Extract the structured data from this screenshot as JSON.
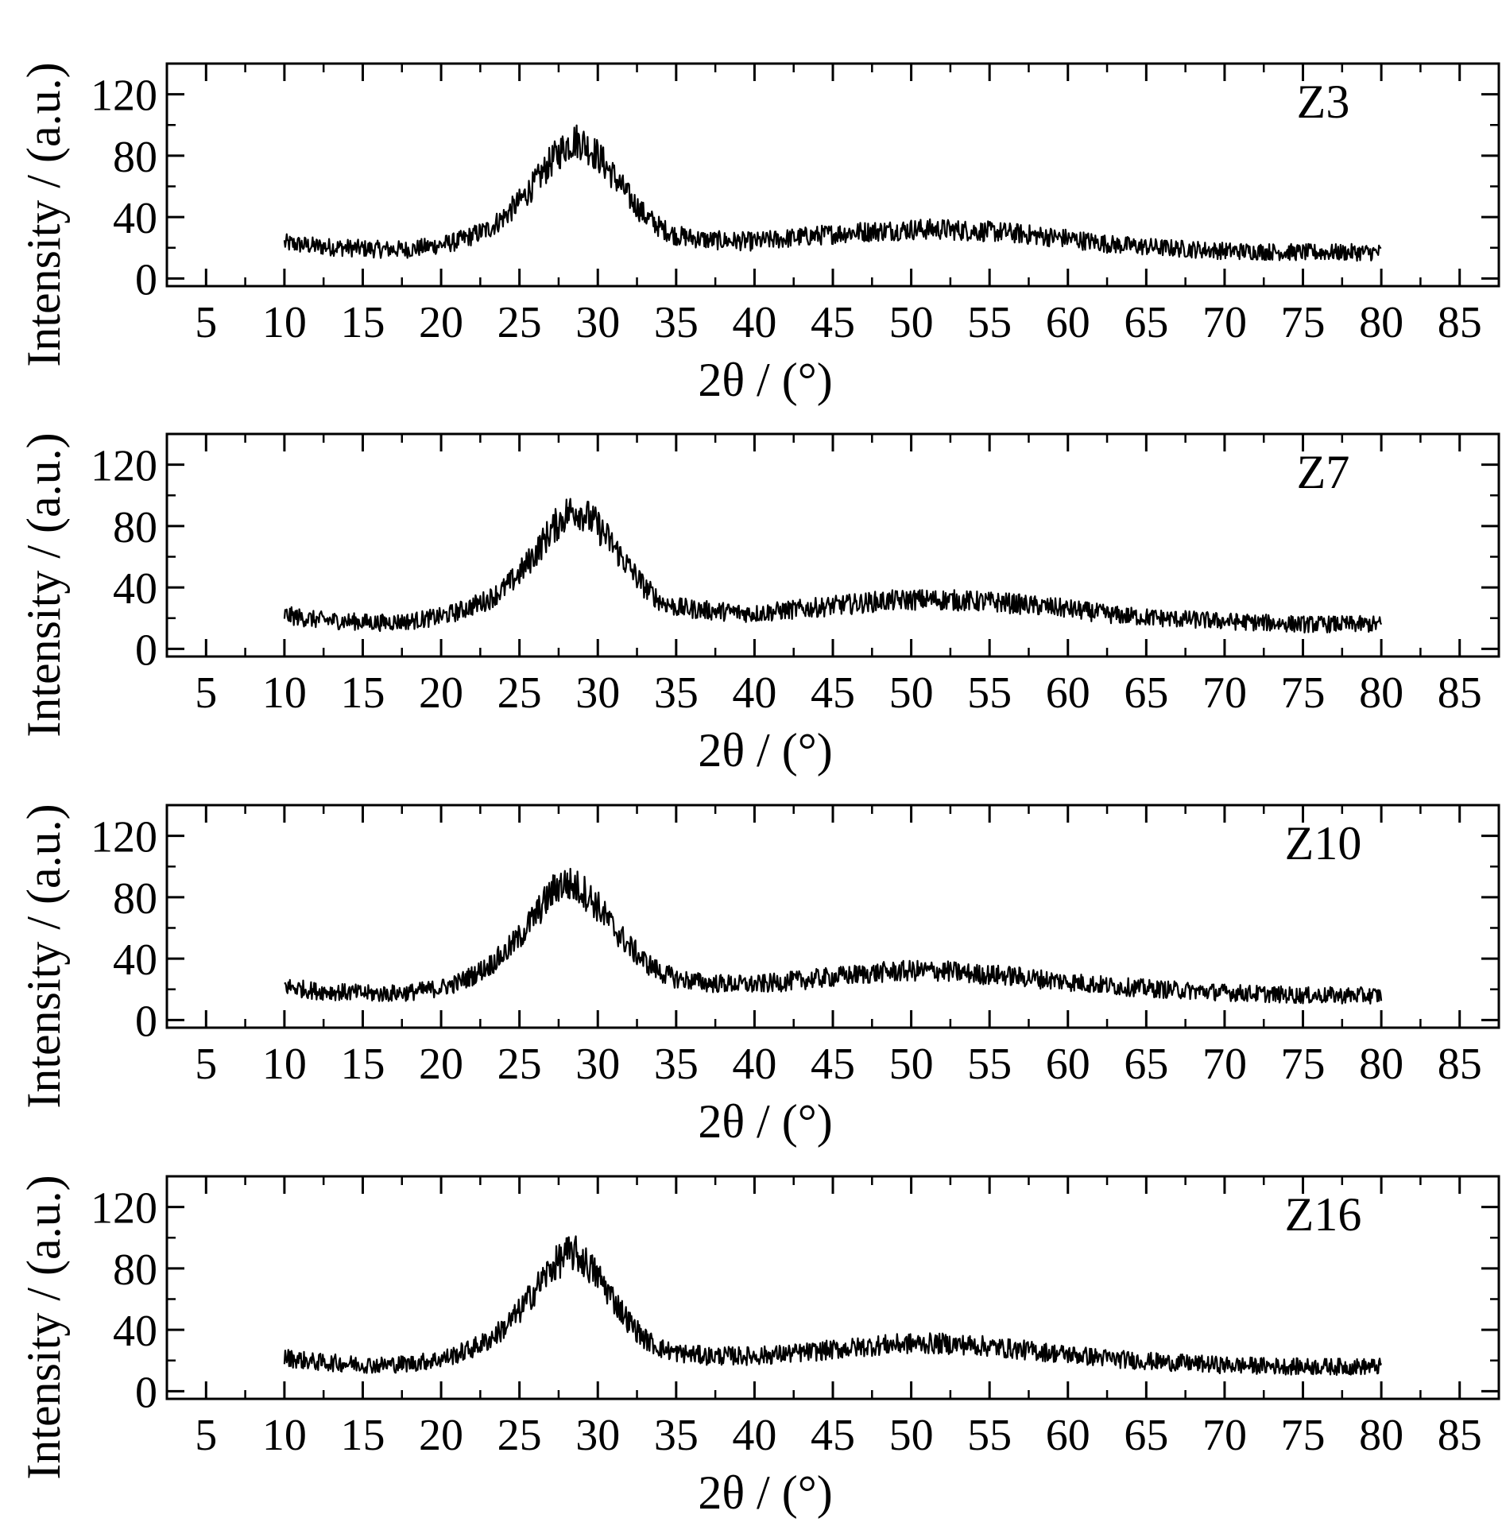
{
  "figure": {
    "background": "#ffffff",
    "line_color": "#000000"
  },
  "chart_data": [
    {
      "type": "line",
      "annotation": "Z3",
      "xlabel": "2θ / (°)",
      "ylabel": "Intensity / (a.u.)",
      "xlim": [
        2.5,
        87.5
      ],
      "ylim": [
        -5,
        140
      ],
      "xticks": [
        5,
        10,
        15,
        20,
        25,
        30,
        35,
        40,
        45,
        50,
        55,
        60,
        65,
        70,
        75,
        80,
        85
      ],
      "yticks": [
        0,
        40,
        80,
        120
      ],
      "x_range": [
        10,
        80
      ],
      "grid": false,
      "series": [
        {
          "x": [
            10,
            12,
            14,
            16,
            18,
            20,
            21,
            22,
            23,
            24,
            25,
            26,
            27,
            28,
            28.5,
            29,
            30,
            31,
            32,
            33,
            34,
            35,
            37,
            40,
            43,
            46,
            48,
            50,
            52,
            54,
            56,
            58,
            60,
            63,
            66,
            70,
            75,
            80
          ],
          "y": [
            23,
            21,
            20,
            19,
            19,
            22,
            24,
            28,
            32,
            40,
            50,
            62,
            76,
            87,
            90,
            89,
            80,
            67,
            53,
            41,
            33,
            28,
            25,
            24,
            27,
            30,
            31,
            32,
            32,
            31,
            30,
            28,
            26,
            22,
            20,
            18,
            17,
            17
          ]
        }
      ]
    },
    {
      "type": "line",
      "annotation": "Z7",
      "xlabel": "2θ / (°)",
      "ylabel": "Intensity / (a.u.)",
      "xlim": [
        2.5,
        87.5
      ],
      "ylim": [
        -5,
        140
      ],
      "xticks": [
        5,
        10,
        15,
        20,
        25,
        30,
        35,
        40,
        45,
        50,
        55,
        60,
        65,
        70,
        75,
        80,
        85
      ],
      "yticks": [
        0,
        40,
        80,
        120
      ],
      "x_range": [
        10,
        80
      ],
      "grid": false,
      "series": [
        {
          "x": [
            10,
            12,
            14,
            16,
            18,
            20,
            21,
            22,
            23,
            24,
            25,
            26,
            27,
            28,
            28.5,
            29,
            30,
            31,
            32,
            33,
            34,
            35,
            37,
            40,
            43,
            46,
            48,
            50,
            52,
            54,
            56,
            58,
            60,
            63,
            66,
            70,
            75,
            80
          ],
          "y": [
            22,
            19,
            18,
            17,
            18,
            21,
            24,
            28,
            32,
            39,
            49,
            62,
            77,
            88,
            91,
            89,
            80,
            67,
            53,
            40,
            31,
            27,
            25,
            23,
            26,
            29,
            31,
            32,
            32,
            31,
            30,
            28,
            26,
            22,
            20,
            18,
            16,
            16
          ]
        }
      ]
    },
    {
      "type": "line",
      "annotation": "Z10",
      "xlabel": "2θ / (°)",
      "ylabel": "Intensity / (a.u.)",
      "xlim": [
        2.5,
        87.5
      ],
      "ylim": [
        -5,
        140
      ],
      "xticks": [
        5,
        10,
        15,
        20,
        25,
        30,
        35,
        40,
        45,
        50,
        55,
        60,
        65,
        70,
        75,
        80,
        85
      ],
      "yticks": [
        0,
        40,
        80,
        120
      ],
      "x_range": [
        10,
        80
      ],
      "grid": false,
      "series": [
        {
          "x": [
            10,
            12,
            14,
            16,
            18,
            20,
            21,
            22,
            23,
            24,
            25,
            26,
            27,
            27.5,
            28,
            29,
            30,
            31,
            32,
            33,
            34,
            35,
            37,
            40,
            43,
            46,
            48,
            50,
            52,
            54,
            56,
            58,
            60,
            63,
            66,
            70,
            75,
            80
          ],
          "y": [
            22,
            19,
            18,
            17,
            18,
            21,
            24,
            29,
            35,
            43,
            54,
            68,
            82,
            88,
            89,
            85,
            74,
            60,
            48,
            38,
            31,
            27,
            24,
            23,
            26,
            29,
            31,
            32,
            32,
            30,
            29,
            27,
            25,
            22,
            20,
            18,
            16,
            16
          ]
        }
      ]
    },
    {
      "type": "line",
      "annotation": "Z16",
      "xlabel": "2θ / (°)",
      "ylabel": "Intensity / (a.u.)",
      "xlim": [
        2.5,
        87.5
      ],
      "ylim": [
        -5,
        140
      ],
      "xticks": [
        5,
        10,
        15,
        20,
        25,
        30,
        35,
        40,
        45,
        50,
        55,
        60,
        65,
        70,
        75,
        80,
        85
      ],
      "yticks": [
        0,
        40,
        80,
        120
      ],
      "x_range": [
        10,
        80
      ],
      "grid": false,
      "series": [
        {
          "x": [
            10,
            12,
            14,
            16,
            18,
            20,
            21,
            22,
            23,
            24,
            25,
            26,
            27,
            28,
            28.5,
            29,
            30,
            31,
            32,
            33,
            34,
            35,
            37,
            40,
            43,
            46,
            48,
            50,
            52,
            54,
            56,
            58,
            60,
            63,
            66,
            70,
            75,
            80
          ],
          "y": [
            22,
            19,
            18,
            17,
            18,
            21,
            24,
            28,
            33,
            41,
            52,
            66,
            80,
            89,
            90,
            86,
            75,
            60,
            45,
            34,
            28,
            25,
            23,
            23,
            25,
            28,
            30,
            31,
            31,
            30,
            28,
            26,
            24,
            21,
            19,
            17,
            16,
            16
          ]
        }
      ]
    }
  ]
}
